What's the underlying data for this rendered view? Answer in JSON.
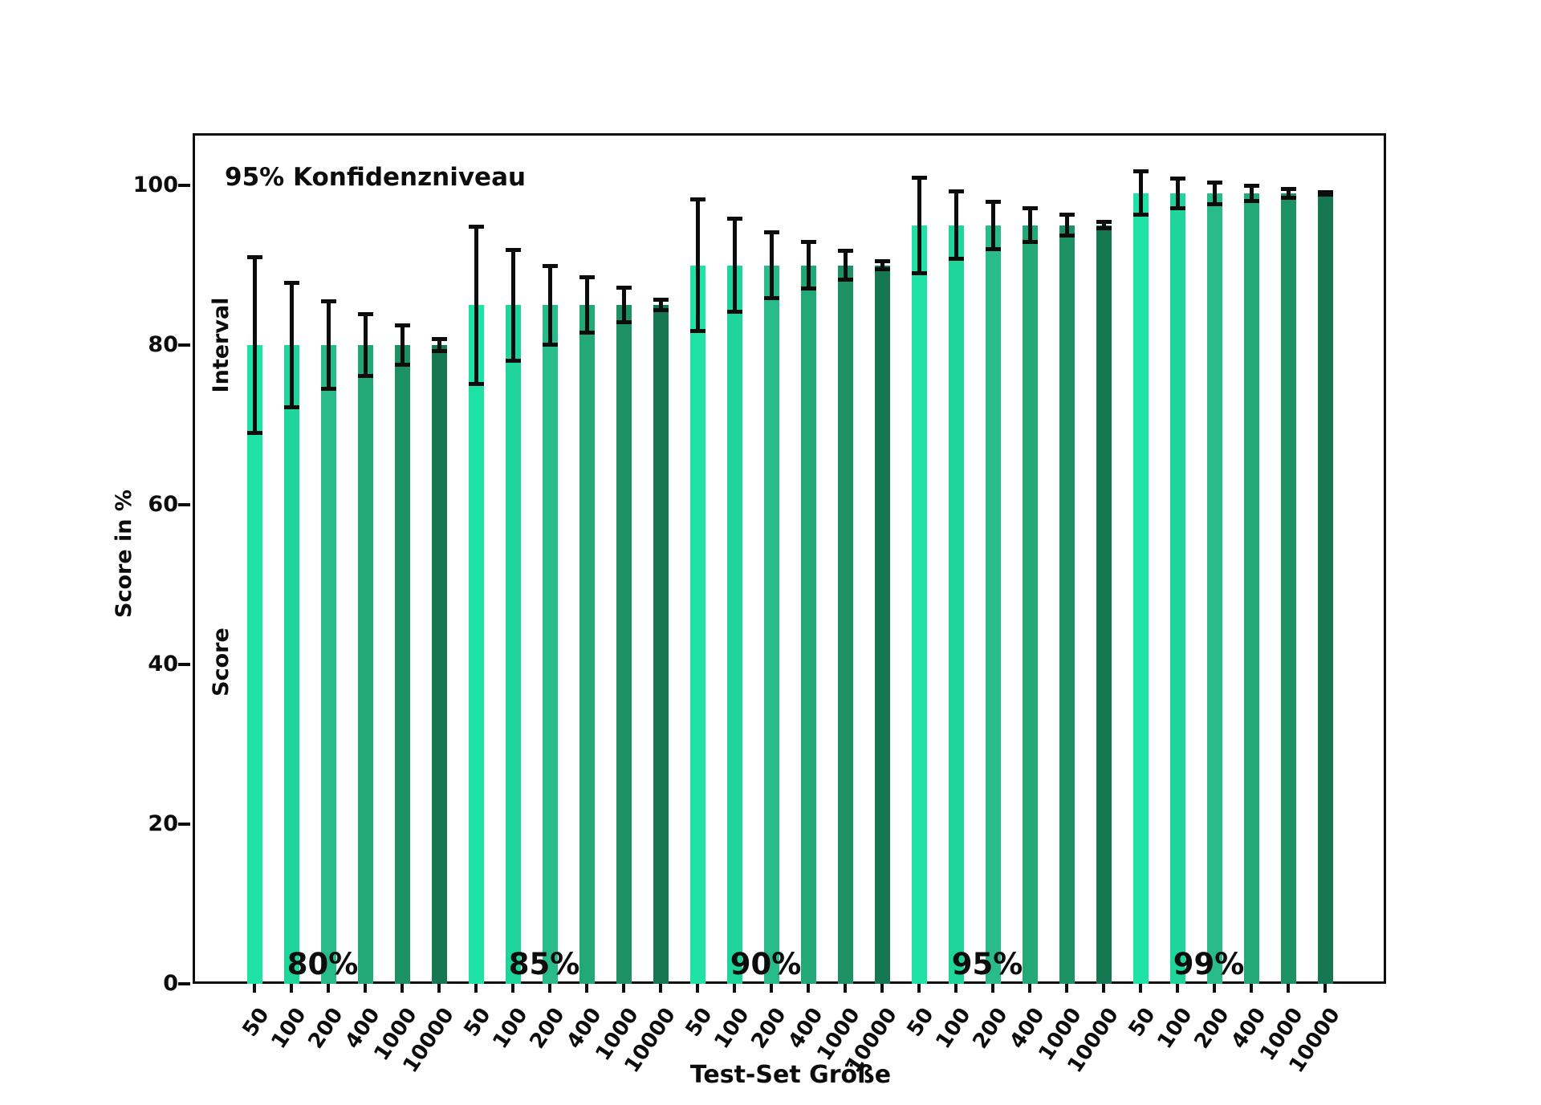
{
  "chart_data": {
    "type": "bar",
    "title_annotation": "95% Konfidenzniveau",
    "xlabel": "Test-Set Größe",
    "ylabel": "Score in %",
    "annotations": {
      "interval": "Interval",
      "score": "Score"
    },
    "yticks": [
      0,
      20,
      40,
      60,
      80,
      100
    ],
    "ylim": [
      0,
      106.5
    ],
    "grid": false,
    "legend_position": "none",
    "sizes": [
      "50",
      "100",
      "200",
      "400",
      "1000",
      "10000"
    ],
    "bar_colors": [
      "#1FE2A6",
      "#20D59B",
      "#2ABB8A",
      "#23A878",
      "#1E9164",
      "#157853"
    ],
    "error_color": "#0c0c0c",
    "groups": [
      {
        "label": "80%",
        "score": 80,
        "errors": [
          11.09,
          7.84,
          5.54,
          3.92,
          2.48,
          0.78
        ]
      },
      {
        "label": "85%",
        "score": 85,
        "errors": [
          9.9,
          7.0,
          4.95,
          3.5,
          2.21,
          0.7
        ]
      },
      {
        "label": "90%",
        "score": 90,
        "errors": [
          8.32,
          5.88,
          4.16,
          2.94,
          1.86,
          0.59
        ]
      },
      {
        "label": "95%",
        "score": 95,
        "errors": [
          6.04,
          4.27,
          3.02,
          2.14,
          1.35,
          0.43
        ]
      },
      {
        "label": "99%",
        "score": 99,
        "errors": [
          2.76,
          1.95,
          1.38,
          0.98,
          0.62,
          0.2
        ]
      }
    ]
  }
}
